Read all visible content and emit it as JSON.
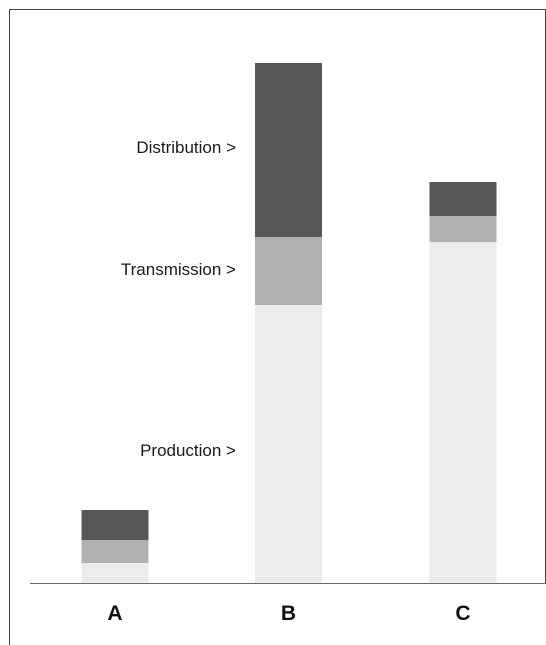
{
  "chart_data": {
    "type": "bar",
    "stacked": true,
    "categories": [
      "A",
      "B",
      "C"
    ],
    "series": [
      {
        "name": "Production",
        "values": [
          20,
          278,
          341
        ],
        "color": "#ececec"
      },
      {
        "name": "Transmission",
        "values": [
          23,
          68,
          26
        ],
        "color": "#b1b1b1"
      },
      {
        "name": "Distribution",
        "values": [
          30,
          174,
          34
        ],
        "color": "#575756"
      }
    ],
    "series_labels": [
      "Distribution >",
      "Transmission >",
      "Production >"
    ],
    "title": "",
    "xlabel": "",
    "ylabel": "",
    "ylim": [
      0,
      560
    ],
    "grid": false,
    "legend": "left"
  }
}
